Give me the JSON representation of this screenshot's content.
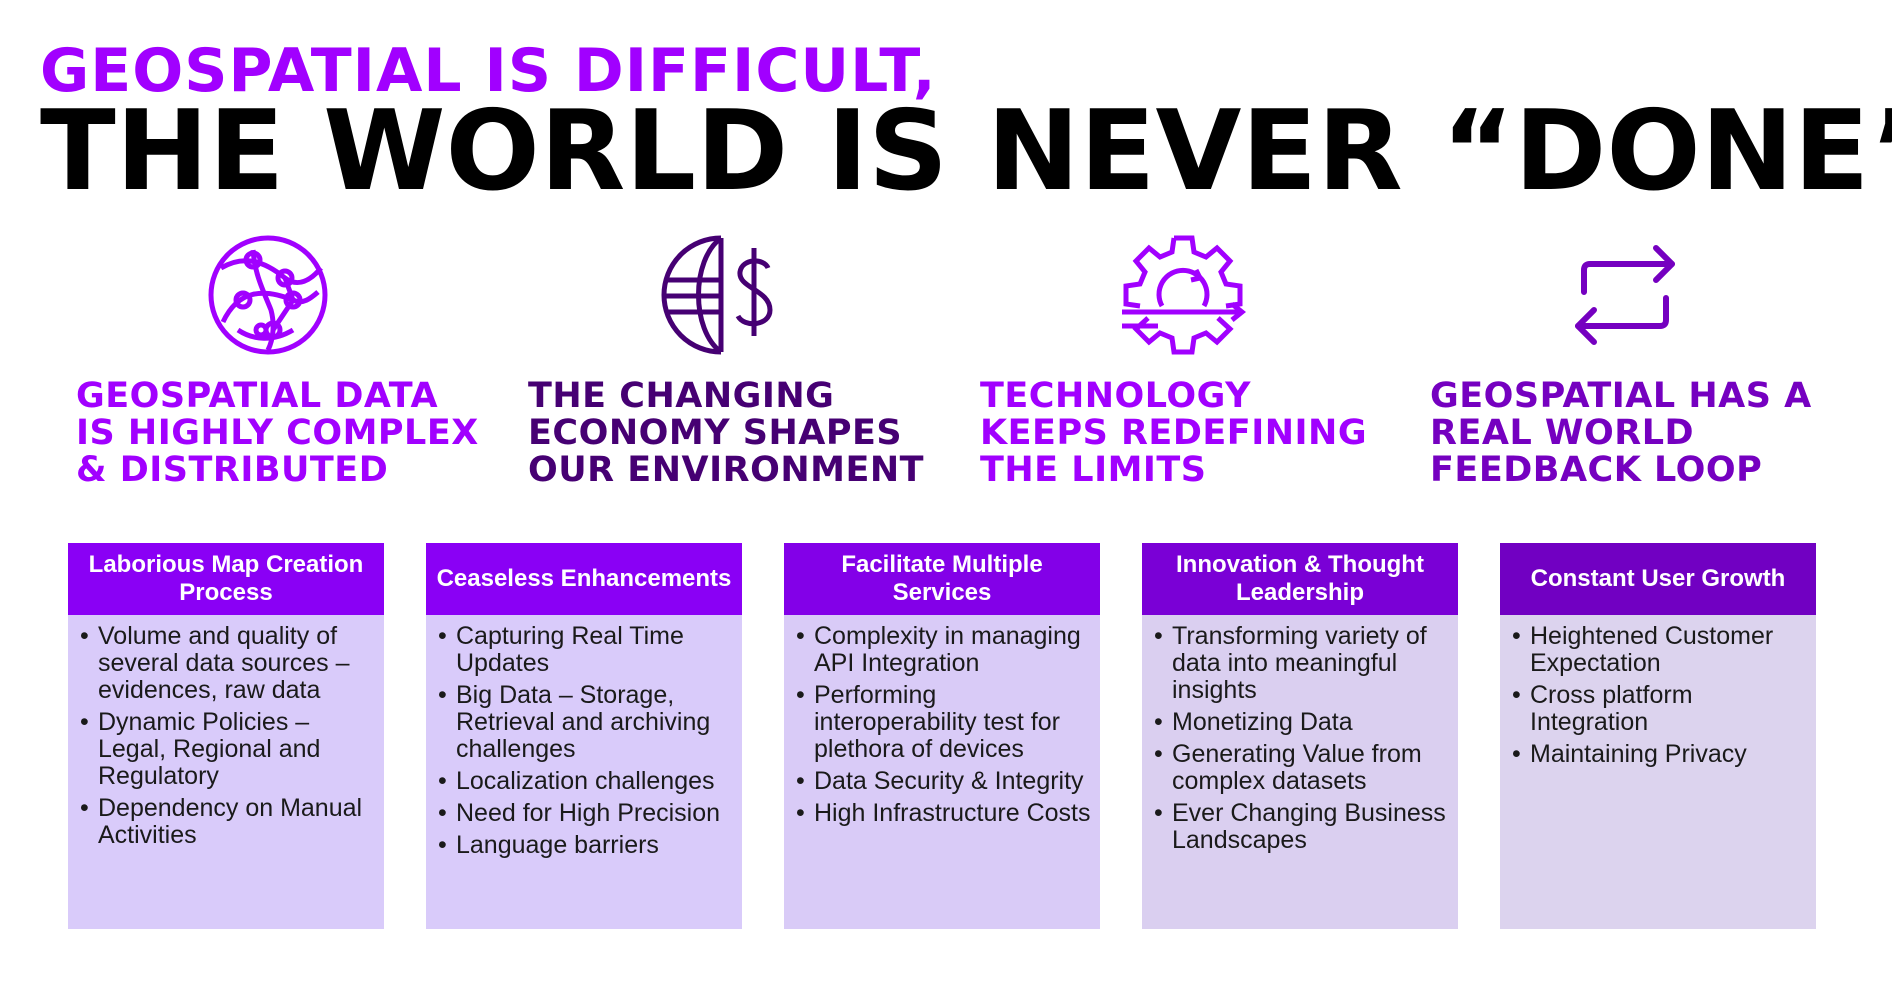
{
  "title": {
    "line1": "GEOSPATIAL IS DIFFICULT,",
    "line2": "THE WORLD IS NEVER “DONE”"
  },
  "colors": {
    "purple_bright": "#a100ff",
    "purple_dark": "#460073",
    "purple_mid": "#7500c0",
    "card_body_bg": "#d8ccf6",
    "black": "#000000"
  },
  "themes": [
    {
      "icon": "globe-network-icon",
      "color": "#a100ff",
      "lines": [
        "GEOSPATIAL DATA",
        "IS HIGHLY COMPLEX",
        "& DISTRIBUTED"
      ]
    },
    {
      "icon": "globe-dollar-icon",
      "color": "#460073",
      "lines": [
        "THE CHANGING",
        "ECONOMY SHAPES",
        "OUR ENVIRONMENT"
      ]
    },
    {
      "icon": "gear-refresh-icon",
      "color": "#a100ff",
      "lines": [
        "TECHNOLOGY",
        "KEEPS REDEFINING",
        "THE LIMITS"
      ]
    },
    {
      "icon": "loop-arrows-icon",
      "color": "#7500c0",
      "lines": [
        "GEOSPATIAL HAS A",
        "REAL WORLD",
        "FEEDBACK LOOP"
      ]
    }
  ],
  "cards": [
    {
      "title": "Laborious Map Creation Process",
      "header_color": "#8a00f5",
      "body_color": "#d9cbfa",
      "items": [
        "Volume and quality of several data sources – evidences, raw data",
        "Dynamic Policies – Legal, Regional and Regulatory",
        "Dependency on Manual Activities"
      ]
    },
    {
      "title": "Ceaseless Enhancements",
      "header_color": "#8a00f5",
      "body_color": "#d9cbfa",
      "items": [
        "Capturing Real Time Updates",
        "Big Data – Storage, Retrieval and archiving challenges",
        "Localization challenges",
        "Need for High Precision",
        "Language barriers"
      ]
    },
    {
      "title": "Facilitate Multiple Services",
      "header_color": "#8300e8",
      "body_color": "#d9cbf7",
      "items": [
        "Complexity in managing API Integration",
        "Performing interoperability test for plethora of devices",
        "Data Security & Integrity",
        "High Infrastructure Costs"
      ]
    },
    {
      "title": "Innovation & Thought Leadership",
      "header_color": "#7a00d6",
      "body_color": "#dacff0",
      "items": [
        "Transforming variety of data into meaningful insights",
        "Monetizing Data",
        "Generating Value from complex datasets",
        "Ever Changing Business Landscapes"
      ]
    },
    {
      "title": "Constant User Growth",
      "header_color": "#7100c2",
      "body_color": "#dcd3ee",
      "items": [
        "Heightened Customer Expectation",
        "Cross platform Integration",
        "Maintaining Privacy"
      ]
    }
  ]
}
